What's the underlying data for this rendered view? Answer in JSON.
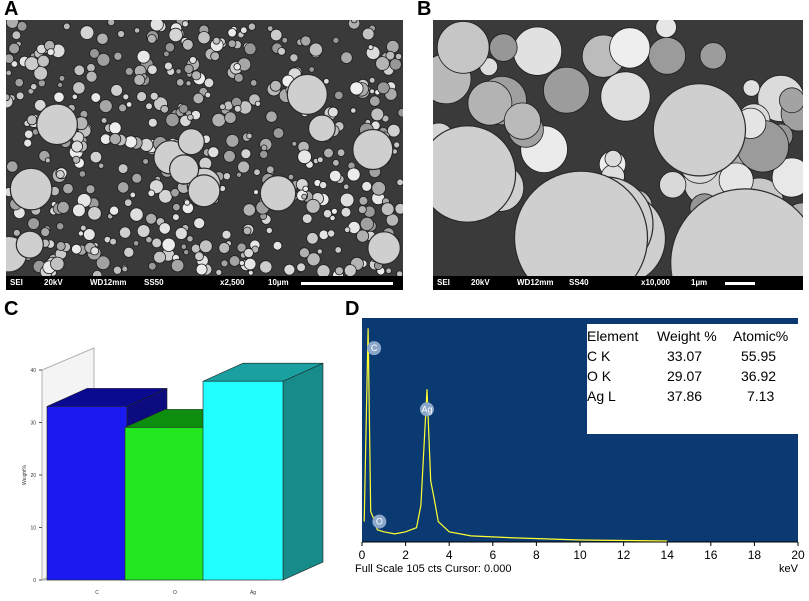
{
  "panel_labels": [
    "A",
    "B",
    "C",
    "D"
  ],
  "sem_a": {
    "items": [
      "SEI",
      "20kV",
      "WD12mm",
      "SS50",
      "x2,500",
      "10µm"
    ]
  },
  "sem_b": {
    "items": [
      "SEI",
      "20kV",
      "WD12mm",
      "SS40",
      "x10,000",
      "1µm"
    ]
  },
  "colors": {
    "bar_c": "#1a1af0",
    "bar_o": "#22e822",
    "bar_ag": "#22ffff",
    "eds_background": "#0b3a73",
    "eds_spectrum": "#ffff33"
  },
  "chart_data": [
    {
      "type": "bar",
      "style": "3d",
      "categories": [
        "C",
        "O",
        "Ag"
      ],
      "values": [
        33.07,
        29.07,
        37.86
      ],
      "ylabel": "Weight%",
      "ylim": [
        0,
        40
      ],
      "yticks": [
        0,
        10,
        20,
        30,
        40
      ],
      "grid": false
    },
    {
      "type": "line",
      "xlabel": "keV",
      "xlim": [
        0,
        20
      ],
      "xticks": [
        0,
        2,
        4,
        6,
        8,
        10,
        12,
        14,
        16,
        18,
        20
      ],
      "footer": "Full Scale 105 cts Cursor: 0.000",
      "peaks": [
        {
          "label": "C",
          "x": 0.28
        },
        {
          "label": "O",
          "x": 0.52
        },
        {
          "label": "Ag",
          "x": 2.98
        }
      ],
      "x": [
        0.1,
        0.28,
        0.4,
        0.52,
        0.7,
        1.0,
        1.5,
        2.0,
        2.5,
        2.7,
        2.98,
        3.15,
        3.3,
        3.5,
        4.0,
        5.0,
        7.0,
        10.0,
        14.0
      ],
      "y": [
        10,
        105,
        15,
        12,
        6,
        5,
        4,
        5,
        7,
        18,
        75,
        30,
        22,
        10,
        5,
        3,
        2,
        1,
        0.5
      ],
      "table": {
        "headers": [
          "Element",
          "Weight %",
          "Atomic%"
        ],
        "rows": [
          [
            "C K",
            "33.07",
            "55.95"
          ],
          [
            "O K",
            "29.07",
            "36.92"
          ],
          [
            "Ag L",
            "37.86",
            "7.13"
          ]
        ]
      }
    }
  ]
}
